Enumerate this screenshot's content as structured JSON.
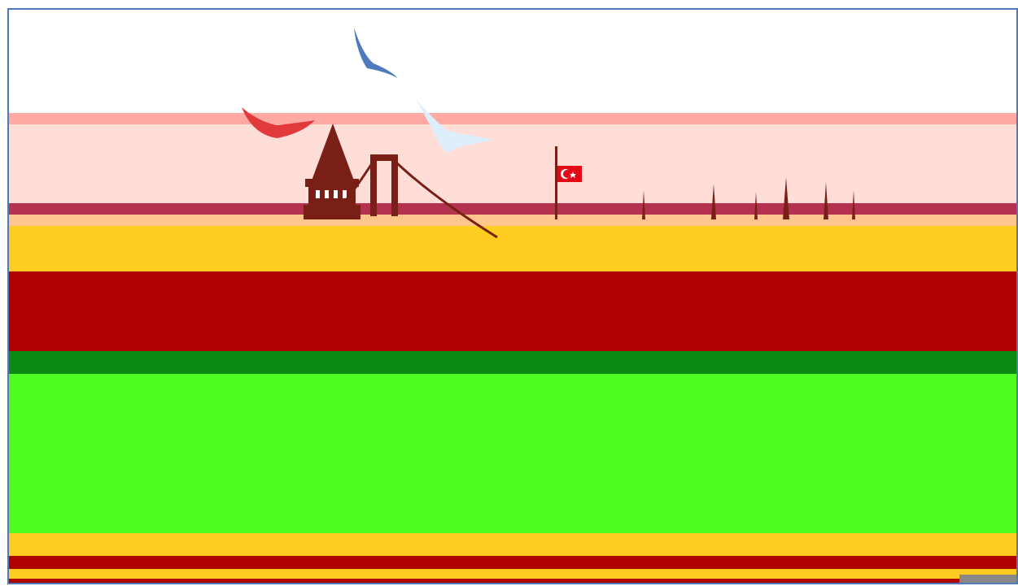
{
  "event": {
    "title": "",
    "venue": "",
    "dates": "",
    "city": ""
  },
  "colors": {
    "border": "#4f7bbd",
    "band_pink": "#ffded8",
    "band_yellow": "#ffcd22",
    "band_red": "#b10000",
    "band_green": "#4dfc1e",
    "flag_red": "#e30a17",
    "skyline": "#7a1f16",
    "bird_blue": "#4f7bbd"
  },
  "icons": {
    "bird_1": "seagull-icon",
    "bird_2": "seagull-icon",
    "bird_3": "seagull-icon",
    "tower": "galata-tower-icon",
    "bridge": "bosphorus-bridge-icon",
    "flag": "turkish-flag-icon"
  }
}
